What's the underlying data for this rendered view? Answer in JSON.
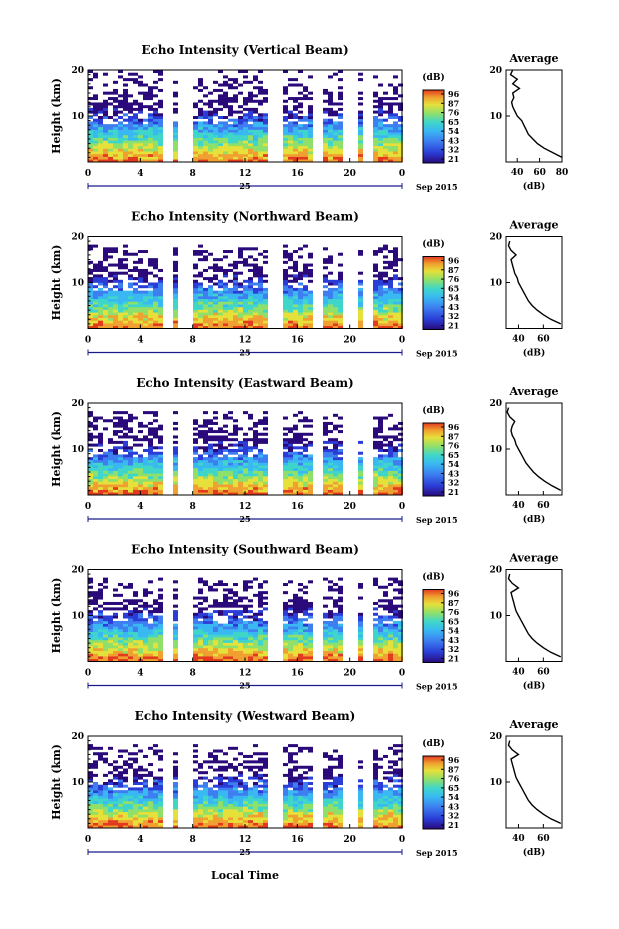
{
  "chart_data": [
    {
      "type": "heatmap",
      "title": "Echo Intensity (Vertical Beam)",
      "ylabel": "Height (km)",
      "ylim": [
        0,
        20
      ],
      "yticks": [
        "10",
        "20"
      ],
      "x_ticks": [
        "0",
        "4",
        "8",
        "12",
        "16",
        "20",
        "0"
      ],
      "date_label": "25",
      "month_year": "Sep 2015",
      "colorbar": {
        "unit": "(dB)",
        "ticks": [
          "96",
          "87",
          "76",
          "65",
          "54",
          "43",
          "32",
          "21"
        ]
      },
      "profile": {
        "title": "Average",
        "xlabel": "(dB)",
        "x_ticks": [
          "40",
          "60",
          "80"
        ],
        "xlim": [
          30,
          80
        ],
        "heights_km": [
          1,
          2,
          3,
          4,
          5,
          6,
          7,
          8,
          9,
          10,
          11,
          12,
          13,
          14,
          15,
          16,
          17,
          18,
          19,
          20
        ],
        "values_db": [
          80,
          72,
          64,
          58,
          54,
          50,
          48,
          46,
          44,
          40,
          38,
          36,
          35,
          37,
          36,
          42,
          36,
          40,
          34,
          36
        ]
      }
    },
    {
      "type": "heatmap",
      "title": "Echo Intensity (Northward Beam)",
      "ylabel": "Height (km)",
      "ylim": [
        0,
        20
      ],
      "yticks": [
        "10",
        "20"
      ],
      "x_ticks": [
        "0",
        "4",
        "8",
        "12",
        "16",
        "20",
        "0"
      ],
      "date_label": "25",
      "month_year": "Sep 2015",
      "colorbar": {
        "unit": "(dB)",
        "ticks": [
          "96",
          "87",
          "76",
          "65",
          "54",
          "43",
          "32",
          "21"
        ]
      },
      "profile": {
        "title": "Average",
        "xlabel": "(dB)",
        "x_ticks": [
          "40",
          "60"
        ],
        "xlim": [
          30,
          75
        ],
        "heights_km": [
          1,
          2,
          3,
          4,
          5,
          6,
          7,
          8,
          9,
          10,
          11,
          12,
          13,
          14,
          15,
          16,
          17,
          18,
          19
        ],
        "values_db": [
          74,
          66,
          60,
          55,
          51,
          48,
          46,
          44,
          42,
          40,
          39,
          37,
          36,
          35,
          34,
          38,
          34,
          32,
          33
        ]
      }
    },
    {
      "type": "heatmap",
      "title": "Echo Intensity (Eastward Beam)",
      "ylabel": "Height (km)",
      "ylim": [
        0,
        20
      ],
      "yticks": [
        "10",
        "20"
      ],
      "x_ticks": [
        "0",
        "4",
        "8",
        "12",
        "16",
        "20",
        "0"
      ],
      "date_label": "25",
      "month_year": "Sep 2015",
      "colorbar": {
        "unit": "(dB)",
        "ticks": [
          "96",
          "87",
          "76",
          "65",
          "54",
          "43",
          "32",
          "21"
        ]
      },
      "profile": {
        "title": "Average",
        "xlabel": "(dB)",
        "x_ticks": [
          "40",
          "60"
        ],
        "xlim": [
          30,
          75
        ],
        "heights_km": [
          1,
          2,
          3,
          4,
          5,
          6,
          7,
          8,
          9,
          10,
          11,
          12,
          13,
          14,
          15,
          16,
          17,
          18,
          19
        ],
        "values_db": [
          74,
          67,
          61,
          56,
          52,
          49,
          46,
          44,
          42,
          40,
          38,
          37,
          35,
          34,
          35,
          37,
          33,
          31,
          32
        ]
      }
    },
    {
      "type": "heatmap",
      "title": "Echo Intensity (Southward Beam)",
      "ylabel": "Height (km)",
      "ylim": [
        0,
        20
      ],
      "yticks": [
        "10",
        "20"
      ],
      "x_ticks": [
        "0",
        "4",
        "8",
        "12",
        "16",
        "20",
        "0"
      ],
      "date_label": "25",
      "month_year": "Sep 2015",
      "colorbar": {
        "unit": "(dB)",
        "ticks": [
          "96",
          "87",
          "76",
          "65",
          "54",
          "43",
          "32",
          "21"
        ]
      },
      "profile": {
        "title": "Average",
        "xlabel": "(dB)",
        "x_ticks": [
          "40",
          "60"
        ],
        "xlim": [
          30,
          75
        ],
        "heights_km": [
          1,
          2,
          3,
          4,
          5,
          6,
          7,
          8,
          9,
          10,
          11,
          12,
          13,
          14,
          15,
          16,
          17,
          18,
          19
        ],
        "values_db": [
          74,
          66,
          60,
          55,
          51,
          48,
          46,
          44,
          42,
          40,
          38,
          37,
          36,
          35,
          34,
          40,
          35,
          32,
          33
        ]
      }
    },
    {
      "type": "heatmap",
      "title": "Echo Intensity (Westward Beam)",
      "ylabel": "Height (km)",
      "ylim": [
        0,
        20
      ],
      "yticks": [
        "10",
        "20"
      ],
      "x_ticks": [
        "0",
        "4",
        "8",
        "12",
        "16",
        "20",
        "0"
      ],
      "date_label": "25",
      "month_year": "Sep 2015",
      "colorbar": {
        "unit": "(dB)",
        "ticks": [
          "96",
          "87",
          "76",
          "65",
          "54",
          "43",
          "32",
          "21"
        ]
      },
      "profile": {
        "title": "Average",
        "xlabel": "(dB)",
        "x_ticks": [
          "40",
          "60"
        ],
        "xlim": [
          30,
          75
        ],
        "heights_km": [
          1,
          2,
          3,
          4,
          5,
          6,
          7,
          8,
          9,
          10,
          11,
          12,
          13,
          14,
          15,
          16,
          17,
          18,
          19
        ],
        "values_db": [
          74,
          66,
          60,
          55,
          51,
          48,
          46,
          44,
          42,
          40,
          38,
          37,
          36,
          35,
          34,
          40,
          35,
          32,
          33
        ]
      }
    }
  ],
  "footer": {
    "xlabel": "Local Time"
  },
  "colors": {
    "colormap": [
      "#2a0a7a",
      "#2a3dd6",
      "#3d7ff0",
      "#39b8f2",
      "#3fd6c9",
      "#8fe06a",
      "#e6e03a",
      "#f0a030",
      "#e23a1e"
    ],
    "ink": "#000000",
    "date_axis": "#1a1a8a"
  }
}
